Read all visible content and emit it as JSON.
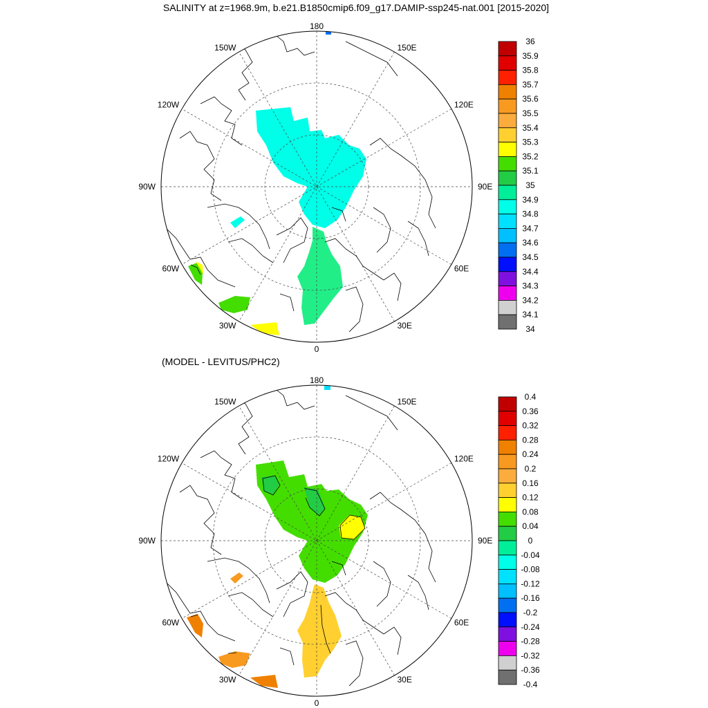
{
  "title": "SALINITY at z=1968.9m, b.e21.B1850cmip6.f09_g17.DAMIP-ssp245-nat.001 [2015-2020]",
  "panels": [
    {
      "id": "salinity",
      "subtitle": "",
      "lon_labels": [
        {
          "text": "180",
          "deg": 180
        },
        {
          "text": "150E",
          "deg": 150
        },
        {
          "text": "120E",
          "deg": 120
        },
        {
          "text": "90E",
          "deg": 90
        },
        {
          "text": "60E",
          "deg": 60
        },
        {
          "text": "30E",
          "deg": 30
        },
        {
          "text": "0",
          "deg": 0
        },
        {
          "text": "30W",
          "deg": -30
        },
        {
          "text": "60W",
          "deg": -60
        },
        {
          "text": "90W",
          "deg": -90
        },
        {
          "text": "120W",
          "deg": -120
        },
        {
          "text": "150W",
          "deg": -150
        }
      ],
      "colorbar": {
        "labels": [
          "36",
          "35.9",
          "35.8",
          "35.7",
          "35.6",
          "35.5",
          "35.4",
          "35.3",
          "35.2",
          "35.1",
          "35",
          "34.9",
          "34.8",
          "34.7",
          "34.6",
          "34.5",
          "34.4",
          "34.3",
          "34.2",
          "34.1",
          "34"
        ],
        "colors": [
          "#c00000",
          "#e00000",
          "#ff2000",
          "#f08000",
          "#f89a20",
          "#fbac3c",
          "#ffd030",
          "#ffff00",
          "#44dd00",
          "#22cc44",
          "#00ee99",
          "#00ffe8",
          "#00e0ff",
          "#00c0ff",
          "#0070f0",
          "#0010ff",
          "#8010e0",
          "#ee00ee",
          "#d0d0d0",
          "#707070"
        ]
      }
    },
    {
      "id": "difference",
      "subtitle": "(MODEL - LEVITUS/PHC2)",
      "lon_labels": [
        {
          "text": "180",
          "deg": 180
        },
        {
          "text": "150E",
          "deg": 150
        },
        {
          "text": "120E",
          "deg": 120
        },
        {
          "text": "90E",
          "deg": 90
        },
        {
          "text": "60E",
          "deg": 60
        },
        {
          "text": "30E",
          "deg": 30
        },
        {
          "text": "0",
          "deg": 0
        },
        {
          "text": "30W",
          "deg": -30
        },
        {
          "text": "60W",
          "deg": -60
        },
        {
          "text": "90W",
          "deg": -90
        },
        {
          "text": "120W",
          "deg": -120
        },
        {
          "text": "150W",
          "deg": -150
        }
      ],
      "colorbar": {
        "labels": [
          "0.4",
          "0.36",
          "0.32",
          "0.28",
          "0.24",
          "0.2",
          "0.16",
          "0.12",
          "0.08",
          "0.04",
          "0",
          "-0.04",
          "-0.08",
          "-0.12",
          "-0.16",
          "-0.2",
          "-0.24",
          "-0.28",
          "-0.32",
          "-0.36",
          "-0.4"
        ],
        "colors": [
          "#c00000",
          "#e00000",
          "#ff2000",
          "#f08000",
          "#f89a20",
          "#fbac3c",
          "#ffd030",
          "#ffff00",
          "#44dd00",
          "#22cc44",
          "#00ee99",
          "#00ffe8",
          "#00e0ff",
          "#00c0ff",
          "#0070f0",
          "#0010ff",
          "#8010e0",
          "#ee00ee",
          "#d0d0d0",
          "#707070"
        ]
      }
    }
  ]
}
